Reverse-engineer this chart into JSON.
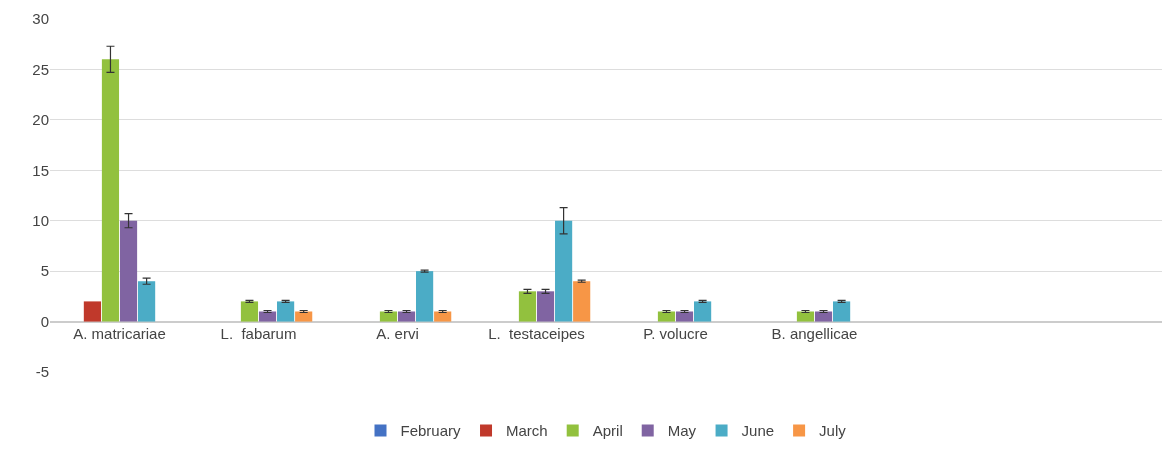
{
  "chart_data": {
    "type": "bar",
    "categories": [
      "A. matricariae",
      "L.  fabarum",
      "A. ervi",
      "L.  testaceipes",
      "P. volucre",
      "B. angellicae",
      null,
      null
    ],
    "series": [
      {
        "name": "February",
        "color": "#4472c4",
        "values": [
          null,
          null,
          null,
          null,
          null,
          null,
          null,
          null
        ]
      },
      {
        "name": "March",
        "color": "#c0392b",
        "values": [
          2,
          null,
          null,
          null,
          null,
          null,
          null,
          null
        ]
      },
      {
        "name": "April",
        "color": "#92c13e",
        "values": [
          26,
          2,
          1,
          3,
          1,
          1,
          null,
          null
        ],
        "errors": [
          1.3,
          0.1,
          0.1,
          0.2,
          0.1,
          0.1,
          null,
          null
        ]
      },
      {
        "name": "May",
        "color": "#8064a2",
        "values": [
          10,
          1,
          1,
          3,
          1,
          1,
          null,
          null
        ],
        "errors": [
          0.7,
          0.1,
          0.1,
          0.2,
          0.1,
          0.1,
          null,
          null
        ]
      },
      {
        "name": "June",
        "color": "#4bacc6",
        "values": [
          4,
          2,
          5,
          10,
          2,
          2,
          null,
          null
        ],
        "errors": [
          0.3,
          0.1,
          0.1,
          1.3,
          0.1,
          0.1,
          null,
          null
        ]
      },
      {
        "name": "July",
        "color": "#f79646",
        "values": [
          null,
          1,
          1,
          4,
          null,
          null,
          null,
          null
        ],
        "errors": [
          null,
          0.1,
          0.1,
          0.1,
          null,
          null,
          null,
          null
        ]
      }
    ],
    "ylim": [
      -5,
      30
    ],
    "yticks": [
      -5,
      0,
      5,
      10,
      15,
      20,
      25,
      30
    ],
    "grid": "y",
    "legend": "bottom"
  }
}
